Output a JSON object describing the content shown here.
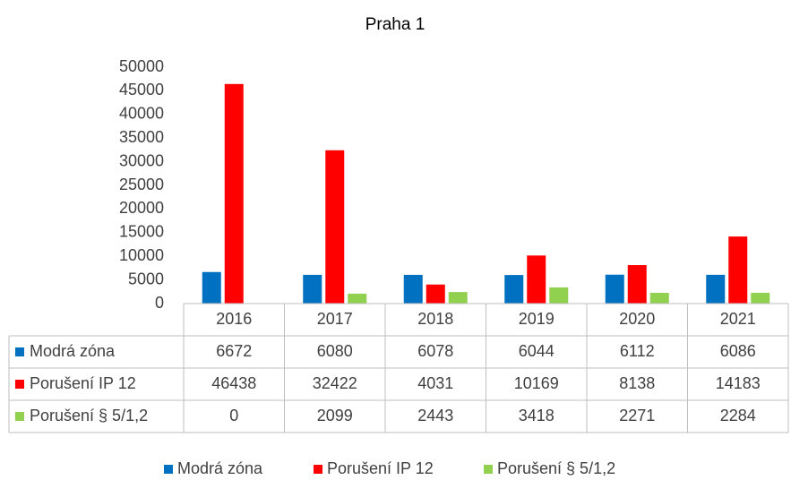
{
  "chart_data": {
    "type": "bar",
    "title": "Praha 1",
    "categories": [
      "2016",
      "2017",
      "2018",
      "2019",
      "2020",
      "2021"
    ],
    "series": [
      {
        "name": "Modrá zóna",
        "color": "#0070c0",
        "values": [
          6672,
          6080,
          6078,
          6044,
          6112,
          6086
        ]
      },
      {
        "name": "Porušení IP 12",
        "color": "#ff0000",
        "values": [
          46438,
          32422,
          4031,
          10169,
          8138,
          14183
        ]
      },
      {
        "name": "Porušení § 5/1,2",
        "color": "#92d050",
        "values": [
          0,
          2099,
          2443,
          3418,
          2271,
          2284
        ]
      }
    ],
    "ylim": [
      0,
      50000
    ],
    "yticks": [
      0,
      5000,
      10000,
      15000,
      20000,
      25000,
      30000,
      35000,
      40000,
      45000,
      50000
    ],
    "grid": false,
    "legend": "bottom",
    "data_table": true
  }
}
